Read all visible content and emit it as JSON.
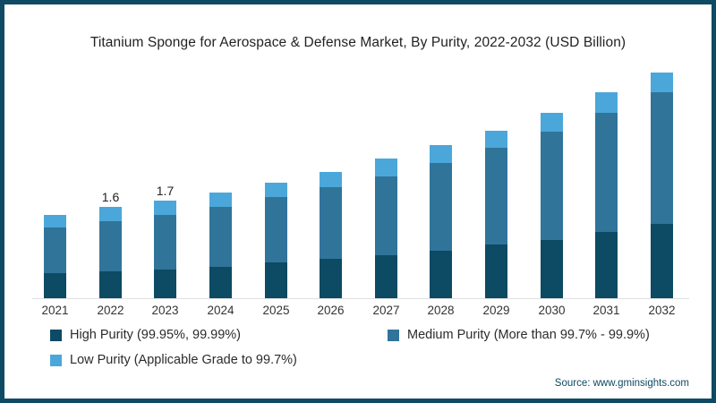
{
  "chart_data": {
    "type": "bar",
    "stacked": true,
    "title": "Titanium Sponge for Aerospace & Defense Market, By Purity, 2022-2032 (USD Billion)",
    "unit": "USD Billion",
    "categories": [
      "2021",
      "2022",
      "2023",
      "2024",
      "2025",
      "2026",
      "2027",
      "2028",
      "2029",
      "2030",
      "2031",
      "2032"
    ],
    "series": [
      {
        "name": "High Purity (99.95%, 99.99%)",
        "color": "#0d4a63",
        "values": [
          0.45,
          0.47,
          0.51,
          0.55,
          0.63,
          0.7,
          0.76,
          0.84,
          0.95,
          1.03,
          1.17,
          1.31
        ]
      },
      {
        "name": "Medium Purity (More than 99.7% - 99.9%)",
        "color": "#30749a",
        "values": [
          0.8,
          0.88,
          0.97,
          1.06,
          1.15,
          1.27,
          1.39,
          1.55,
          1.71,
          1.91,
          2.1,
          2.33
        ]
      },
      {
        "name": "Low Purity (Applicable Grade to 99.7%)",
        "color": "#4ba7d9",
        "values": [
          0.22,
          0.25,
          0.25,
          0.25,
          0.26,
          0.27,
          0.32,
          0.32,
          0.3,
          0.33,
          0.36,
          0.35
        ]
      }
    ],
    "totals_estimated": [
      1.47,
      1.6,
      1.73,
      1.86,
      2.04,
      2.24,
      2.47,
      2.71,
      2.96,
      3.27,
      3.63,
      3.99
    ],
    "data_labels": [
      {
        "category": "2022",
        "text": "1.6"
      },
      {
        "category": "2023",
        "text": "1.7"
      }
    ],
    "xlabel": "",
    "ylabel": "",
    "grid": false,
    "legend_position": "bottom"
  },
  "footer": {
    "source": "Source: www.gminsights.com"
  },
  "colors": {
    "frame": "#0e4a63",
    "axis_line": "#e0e0e0",
    "title_text": "#222222",
    "label_text": "#333333",
    "source_text": "#0d4a63"
  }
}
